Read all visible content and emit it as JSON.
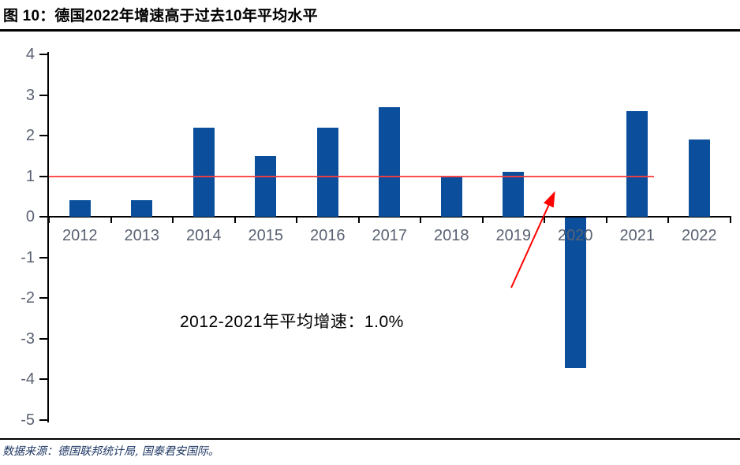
{
  "header": {
    "title": "图 10：德国2022年增速高于过去10年平均水平"
  },
  "annotation": {
    "avg_text": "2012-2021年平均增速：1.0%"
  },
  "footer": {
    "source": "数据来源：德国联邦统计局, 国泰君安国际。"
  },
  "colors": {
    "bar": "#0B4F9C",
    "avg_line": "#FF3B3B",
    "arrow": "#FF0000",
    "axis": "#000000",
    "tick_label": "#5A6272",
    "title_text": "#000000",
    "source_text": "#1F3864"
  },
  "chart_data": {
    "type": "bar",
    "title": "图 10：德国2022年增速高于过去10年平均水平",
    "categories": [
      "2012",
      "2013",
      "2014",
      "2015",
      "2016",
      "2017",
      "2018",
      "2019",
      "2020",
      "2021",
      "2022"
    ],
    "values": [
      0.4,
      0.4,
      2.2,
      1.5,
      2.2,
      2.7,
      1.0,
      1.1,
      -3.7,
      2.6,
      1.9
    ],
    "xlabel": "",
    "ylabel": "",
    "ylim": [
      -5,
      4
    ],
    "yticks": [
      4,
      3,
      2,
      1,
      0,
      -1,
      -2,
      -3,
      -4,
      -5
    ],
    "grid": false,
    "legend": false,
    "reference_line": {
      "value": 1.0,
      "label": "2012-2021年平均增速：1.0%",
      "spans_categories": [
        "2012",
        "2021"
      ]
    },
    "annotation_arrow": {
      "points_to_value": 1.0
    }
  }
}
